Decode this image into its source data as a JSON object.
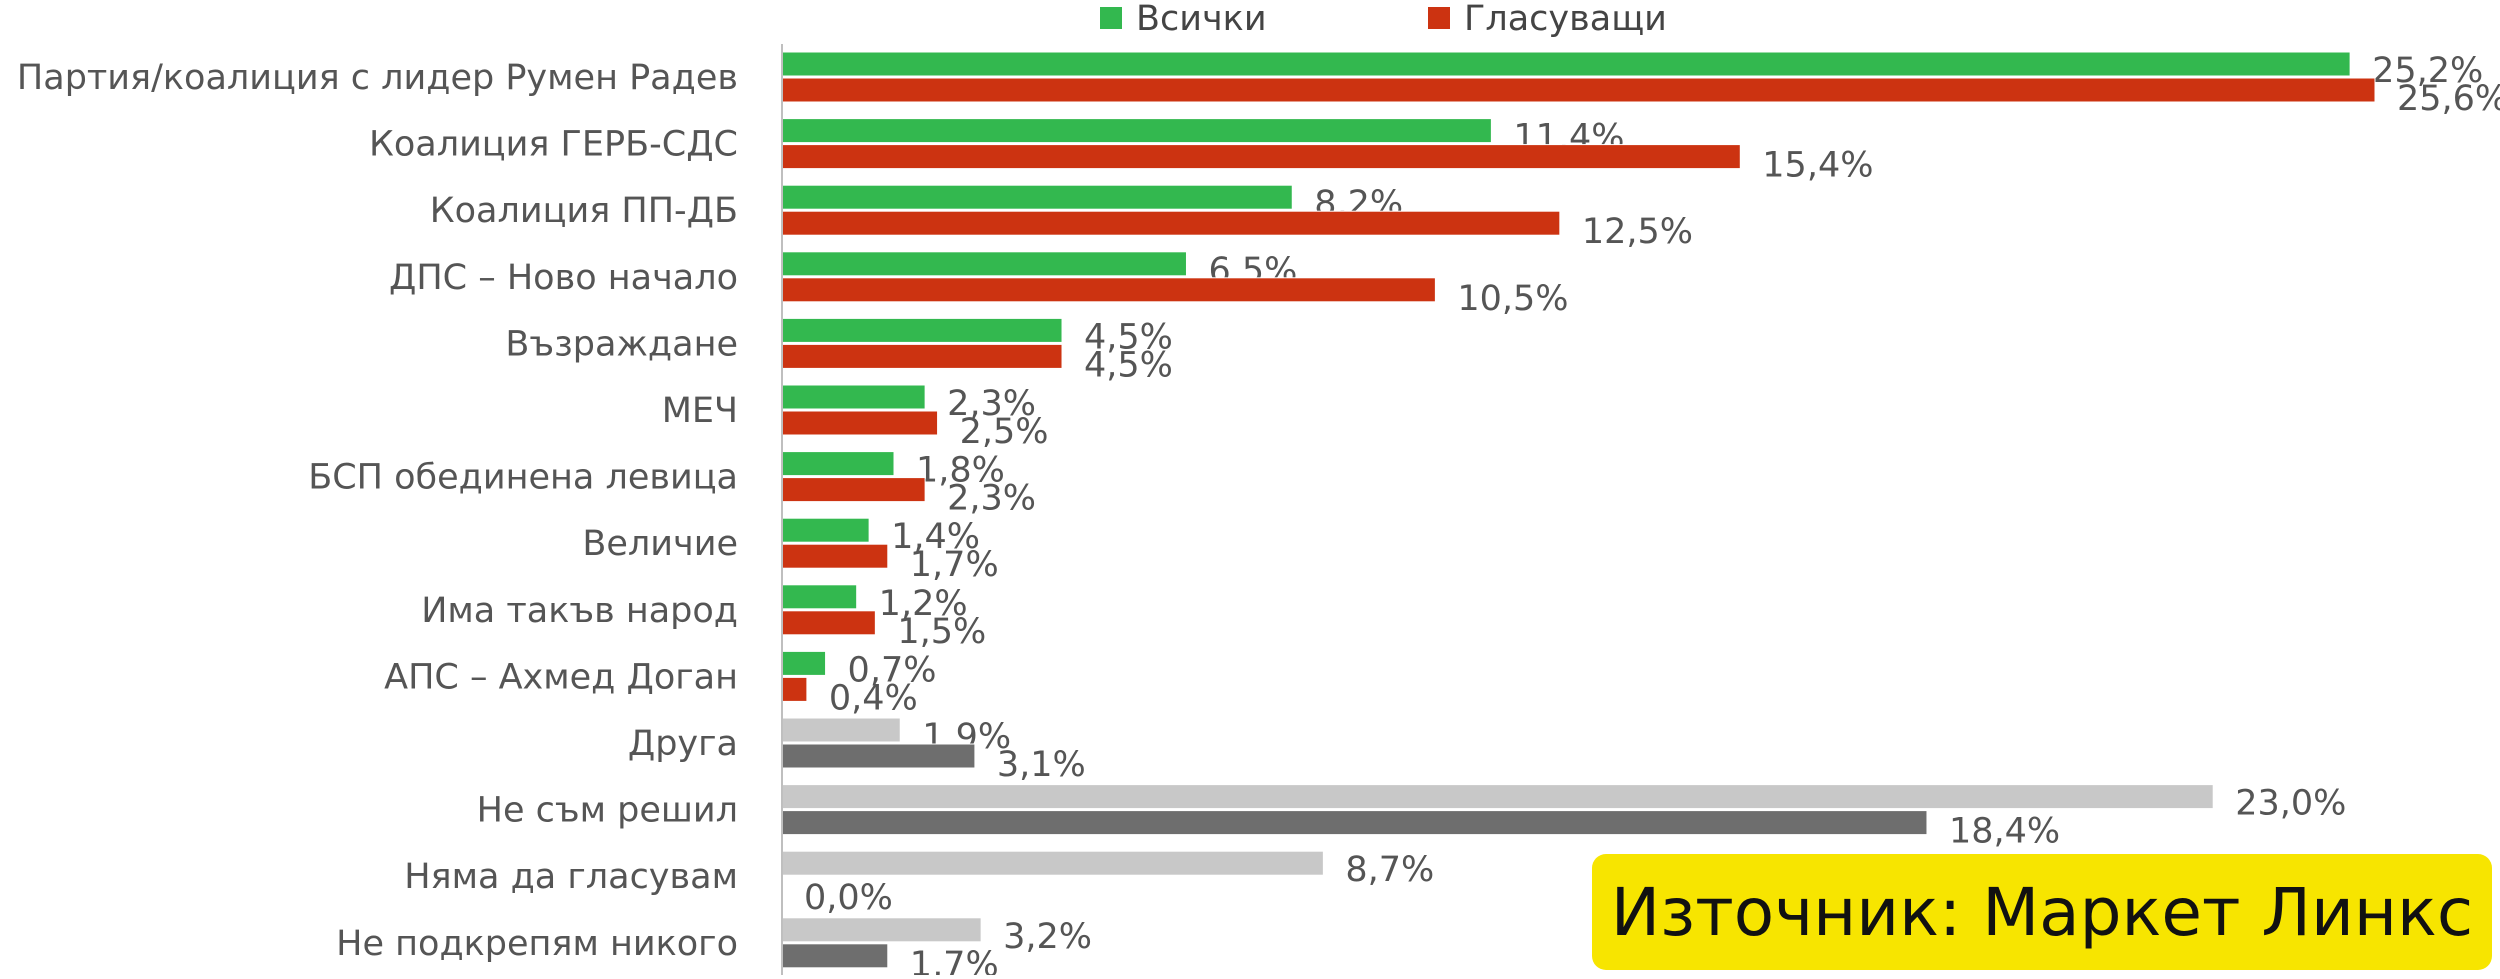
{
  "chart_data": {
    "type": "bar",
    "orientation": "horizontal",
    "title": "",
    "xlabel": "",
    "ylabel": "",
    "xlim": [
      0,
      26
    ],
    "grid": false,
    "legend_position": "top",
    "categories": [
      "Партия/коалиция с лидер Румен Радев",
      "Коалиция ГЕРБ-СДС",
      "Коалиция ПП-ДБ",
      "ДПС – Ново начало",
      "Възраждане",
      "МЕЧ",
      "БСП обединена левица",
      "Величие",
      "Има такъв народ",
      "АПС – Ахмед Доган",
      "Друга",
      "Не съм решил",
      "Няма да гласувам",
      "Не подкрепям никого"
    ],
    "series": [
      {
        "name": "Всички",
        "values": [
          25.2,
          11.4,
          8.2,
          6.5,
          4.5,
          2.3,
          1.8,
          1.4,
          1.2,
          0.7,
          1.9,
          23.0,
          8.7,
          3.2
        ],
        "labels": [
          "25,2%",
          "11,4%",
          "8,2%",
          "6,5%",
          "4,5%",
          "2,3%",
          "1,8%",
          "1,4%",
          "1,2%",
          "0,7%",
          "1,9%",
          "23,0%",
          "8,7%",
          "3,2%"
        ],
        "color": "#33b84f",
        "alt_color": "#c8c8c8"
      },
      {
        "name": "Гласуващи",
        "values": [
          25.6,
          15.4,
          12.5,
          10.5,
          4.5,
          2.5,
          2.3,
          1.7,
          1.5,
          0.4,
          3.1,
          18.4,
          0.0,
          1.7
        ],
        "labels": [
          "25,6%",
          "15,4%",
          "12,5%",
          "10,5%",
          "4,5%",
          "2,5%",
          "2,3%",
          "1,7%",
          "1,5%",
          "0,4%",
          "3,1%",
          "18,4%",
          "0,0%",
          "1,7%"
        ],
        "color": "#cc3311",
        "alt_color": "#6e6e6e"
      }
    ],
    "neutral_categories_from_index": 10
  },
  "source": {
    "text": "Източник: Маркет Линкс",
    "color": "#f7e500"
  }
}
